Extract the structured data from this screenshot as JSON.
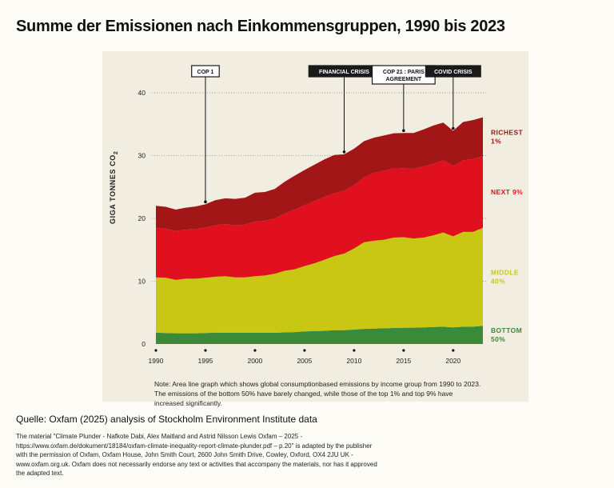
{
  "title": "Summe der Emissionen nach Einkommensgruppen, 1990 bis 2023",
  "y_axis_label": "GIGA TONNES CO",
  "y_axis_label_sub": "2",
  "note": "Note: Area line graph which shows global consumptionbased emissions by income group from 1990 to 2023. The emissions of the bottom 50% have barely changed, while those of the top 1% and top 9% have increased significantly.",
  "source": "Quelle: Oxfam (2025) analysis of Stockholm Environment Institute data",
  "credit": "The material \"Climate Plunder - Nafkote Dabi, Alex Maitland and Astrid Nilsson Lewis Oxfam – 2025 -  https://www.oxfam.de/dokument/18184/oxfam-climate-inequality-report-climate-plunder.pdf – p.20\" is adapted by the publisher with the permission of Oxfam, Oxfam House, John Smith Court, 2600 John Smith Drive, Cowley, Oxford, OX4 2JU UK -www.oxfam.org.uk. Oxfam does not necessarily endorse any text or activities that accompany the materials, nor has it approved the adapted text.",
  "chart_data": {
    "type": "area",
    "stacked": true,
    "x": [
      1990,
      1991,
      1992,
      1993,
      1994,
      1995,
      1996,
      1997,
      1998,
      1999,
      2000,
      2001,
      2002,
      2003,
      2004,
      2005,
      2006,
      2007,
      2008,
      2009,
      2010,
      2011,
      2012,
      2013,
      2014,
      2015,
      2016,
      2017,
      2018,
      2019,
      2020,
      2021,
      2022,
      2023
    ],
    "xticks": [
      1990,
      1995,
      2000,
      2005,
      2010,
      2015,
      2020
    ],
    "yticks": [
      0,
      10,
      20,
      30,
      40
    ],
    "ylim": [
      0,
      40
    ],
    "xlim": [
      1990,
      2023
    ],
    "grid": "horizontal dotted",
    "series": [
      {
        "name": "BOTTOM",
        "share": "50%",
        "color": "#3a8a3a",
        "values": [
          1.8,
          1.75,
          1.7,
          1.7,
          1.7,
          1.75,
          1.8,
          1.8,
          1.8,
          1.8,
          1.8,
          1.8,
          1.8,
          1.85,
          1.9,
          2.0,
          2.05,
          2.1,
          2.2,
          2.2,
          2.3,
          2.4,
          2.45,
          2.5,
          2.55,
          2.6,
          2.6,
          2.65,
          2.7,
          2.75,
          2.65,
          2.75,
          2.75,
          2.9
        ]
      },
      {
        "name": "MIDDLE",
        "share": "40%",
        "color": "#c8c814",
        "values": [
          8.8,
          8.8,
          8.5,
          8.7,
          8.7,
          8.8,
          8.9,
          9.0,
          8.8,
          8.8,
          9.0,
          9.1,
          9.4,
          9.8,
          10.0,
          10.4,
          10.8,
          11.3,
          11.8,
          12.2,
          12.9,
          13.8,
          14.0,
          14.1,
          14.4,
          14.4,
          14.2,
          14.3,
          14.6,
          15.0,
          14.5,
          15.1,
          15.1,
          15.6
        ]
      },
      {
        "name": "NEXT 9%",
        "share": "",
        "color": "#e1101f",
        "values": [
          7.9,
          7.8,
          7.8,
          7.8,
          7.9,
          8.0,
          8.2,
          8.3,
          8.3,
          8.4,
          8.7,
          8.7,
          8.8,
          9.1,
          9.5,
          9.7,
          9.9,
          10.0,
          10.0,
          10.0,
          10.1,
          10.3,
          10.8,
          11.0,
          11.0,
          11.0,
          11.1,
          11.3,
          11.4,
          11.5,
          11.2,
          11.4,
          11.6,
          11.4
        ]
      },
      {
        "name": "RICHEST",
        "share": "1%",
        "color": "#a21617",
        "values": [
          3.5,
          3.5,
          3.4,
          3.5,
          3.6,
          3.7,
          4.0,
          4.1,
          4.2,
          4.3,
          4.6,
          4.6,
          4.7,
          5.1,
          5.4,
          5.6,
          5.8,
          6.0,
          6.1,
          5.8,
          5.8,
          5.8,
          5.6,
          5.6,
          5.6,
          5.6,
          5.7,
          5.9,
          6.1,
          6.0,
          5.6,
          6.1,
          6.2,
          6.2
        ]
      }
    ],
    "annotations": [
      {
        "label": "COP 1",
        "year": 1995,
        "style": "outline"
      },
      {
        "label": "FINANCIAL CRISIS",
        "year": 2009,
        "style": "filled"
      },
      {
        "label": "COP 21 : PARIS AGREEMENT",
        "label_lines": [
          "COP 21 : PARIS",
          "AGREEMENT"
        ],
        "year": 2015,
        "style": "outline"
      },
      {
        "label": "COVID CRISIS",
        "year": 2020,
        "style": "filled"
      }
    ]
  }
}
